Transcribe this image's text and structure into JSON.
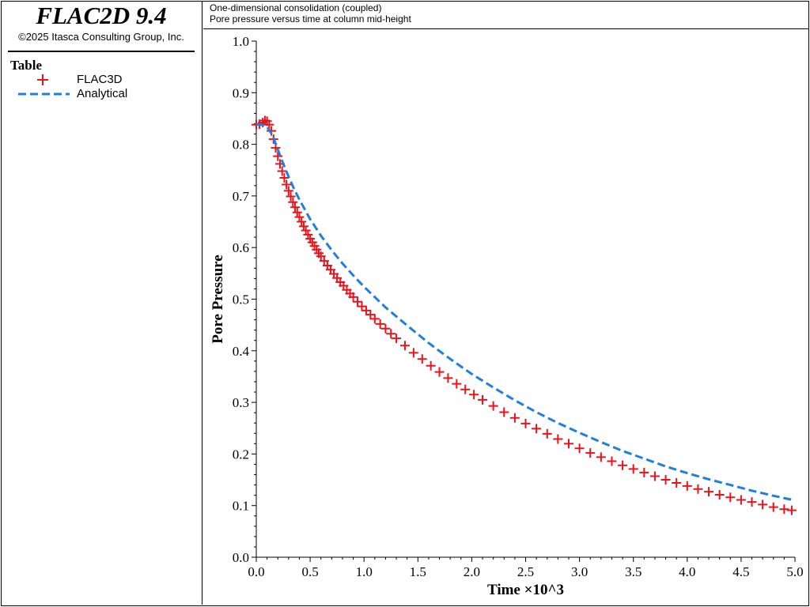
{
  "app": {
    "title": "FLAC2D 9.4",
    "copyright": "©2025 Itasca Consulting Group, Inc."
  },
  "legend": {
    "title": "Table",
    "items": [
      {
        "label": "FLAC3D",
        "marker": "plus-icon",
        "color": "#e8141b"
      },
      {
        "label": "Analytical",
        "marker": "dashed-line-icon",
        "color": "#1e7fe0"
      }
    ]
  },
  "header": {
    "line1": "One-dimensional consolidation (coupled)",
    "line2": "Pore pressure versus time at column mid-height"
  },
  "chart_data": {
    "type": "line",
    "title": "",
    "xlabel": "Time ×10^3",
    "ylabel": "Pore Pressure",
    "xlim": [
      0,
      5
    ],
    "ylim": [
      0,
      1
    ],
    "xticks": [
      "0.0",
      "0.5",
      "1.0",
      "1.5",
      "2.0",
      "2.5",
      "3.0",
      "3.5",
      "4.0",
      "4.5",
      "5.0"
    ],
    "yticks": [
      "0.0",
      "0.1",
      "0.2",
      "0.3",
      "0.4",
      "0.5",
      "0.6",
      "0.7",
      "0.8",
      "0.9",
      "1.0"
    ],
    "grid": false,
    "legend_position": "left-panel",
    "series": [
      {
        "name": "FLAC3D",
        "style": "marker-plus",
        "color": "#e8141b",
        "x": [
          0.0,
          0.03,
          0.06,
          0.08,
          0.1,
          0.12,
          0.14,
          0.16,
          0.18,
          0.2,
          0.22,
          0.24,
          0.26,
          0.28,
          0.3,
          0.32,
          0.34,
          0.36,
          0.38,
          0.4,
          0.42,
          0.44,
          0.46,
          0.48,
          0.5,
          0.52,
          0.54,
          0.56,
          0.58,
          0.6,
          0.63,
          0.66,
          0.69,
          0.72,
          0.75,
          0.78,
          0.81,
          0.84,
          0.87,
          0.9,
          0.94,
          0.98,
          1.02,
          1.06,
          1.1,
          1.15,
          1.2,
          1.25,
          1.3,
          1.38,
          1.46,
          1.54,
          1.62,
          1.7,
          1.78,
          1.86,
          1.94,
          2.02,
          2.1,
          2.2,
          2.3,
          2.4,
          2.5,
          2.6,
          2.7,
          2.8,
          2.9,
          3.0,
          3.1,
          3.2,
          3.3,
          3.4,
          3.5,
          3.6,
          3.7,
          3.8,
          3.9,
          4.0,
          4.1,
          4.2,
          4.3,
          4.4,
          4.5,
          4.6,
          4.7,
          4.8,
          4.9,
          4.97
        ],
        "y": [
          0.838,
          0.839,
          0.842,
          0.846,
          0.845,
          0.838,
          0.826,
          0.81,
          0.793,
          0.777,
          0.762,
          0.748,
          0.735,
          0.722,
          0.71,
          0.699,
          0.688,
          0.678,
          0.668,
          0.659,
          0.65,
          0.641,
          0.633,
          0.625,
          0.617,
          0.61,
          0.603,
          0.596,
          0.589,
          0.583,
          0.574,
          0.565,
          0.557,
          0.549,
          0.541,
          0.533,
          0.526,
          0.518,
          0.511,
          0.504,
          0.495,
          0.486,
          0.478,
          0.47,
          0.462,
          0.452,
          0.443,
          0.433,
          0.424,
          0.41,
          0.396,
          0.384,
          0.371,
          0.359,
          0.347,
          0.336,
          0.325,
          0.315,
          0.305,
          0.293,
          0.281,
          0.27,
          0.259,
          0.249,
          0.239,
          0.229,
          0.22,
          0.211,
          0.202,
          0.194,
          0.186,
          0.178,
          0.171,
          0.164,
          0.157,
          0.15,
          0.144,
          0.138,
          0.132,
          0.127,
          0.121,
          0.116,
          0.111,
          0.107,
          0.102,
          0.097,
          0.093,
          0.091
        ]
      },
      {
        "name": "Analytical",
        "style": "dashed-line",
        "color": "#1e7fe0",
        "x": [
          0.0,
          0.05,
          0.1,
          0.15,
          0.2,
          0.25,
          0.3,
          0.35,
          0.4,
          0.5,
          0.6,
          0.7,
          0.8,
          0.9,
          1.0,
          1.2,
          1.4,
          1.6,
          1.8,
          2.0,
          2.2,
          2.4,
          2.6,
          2.8,
          3.0,
          3.2,
          3.4,
          3.6,
          3.8,
          4.0,
          4.2,
          4.4,
          4.6,
          4.8,
          5.0
        ],
        "y": [
          0.838,
          0.838,
          0.834,
          0.818,
          0.79,
          0.762,
          0.737,
          0.714,
          0.693,
          0.655,
          0.623,
          0.595,
          0.569,
          0.546,
          0.524,
          0.484,
          0.449,
          0.415,
          0.384,
          0.355,
          0.329,
          0.304,
          0.281,
          0.26,
          0.241,
          0.223,
          0.206,
          0.191,
          0.176,
          0.163,
          0.151,
          0.14,
          0.129,
          0.119,
          0.11
        ]
      }
    ]
  }
}
